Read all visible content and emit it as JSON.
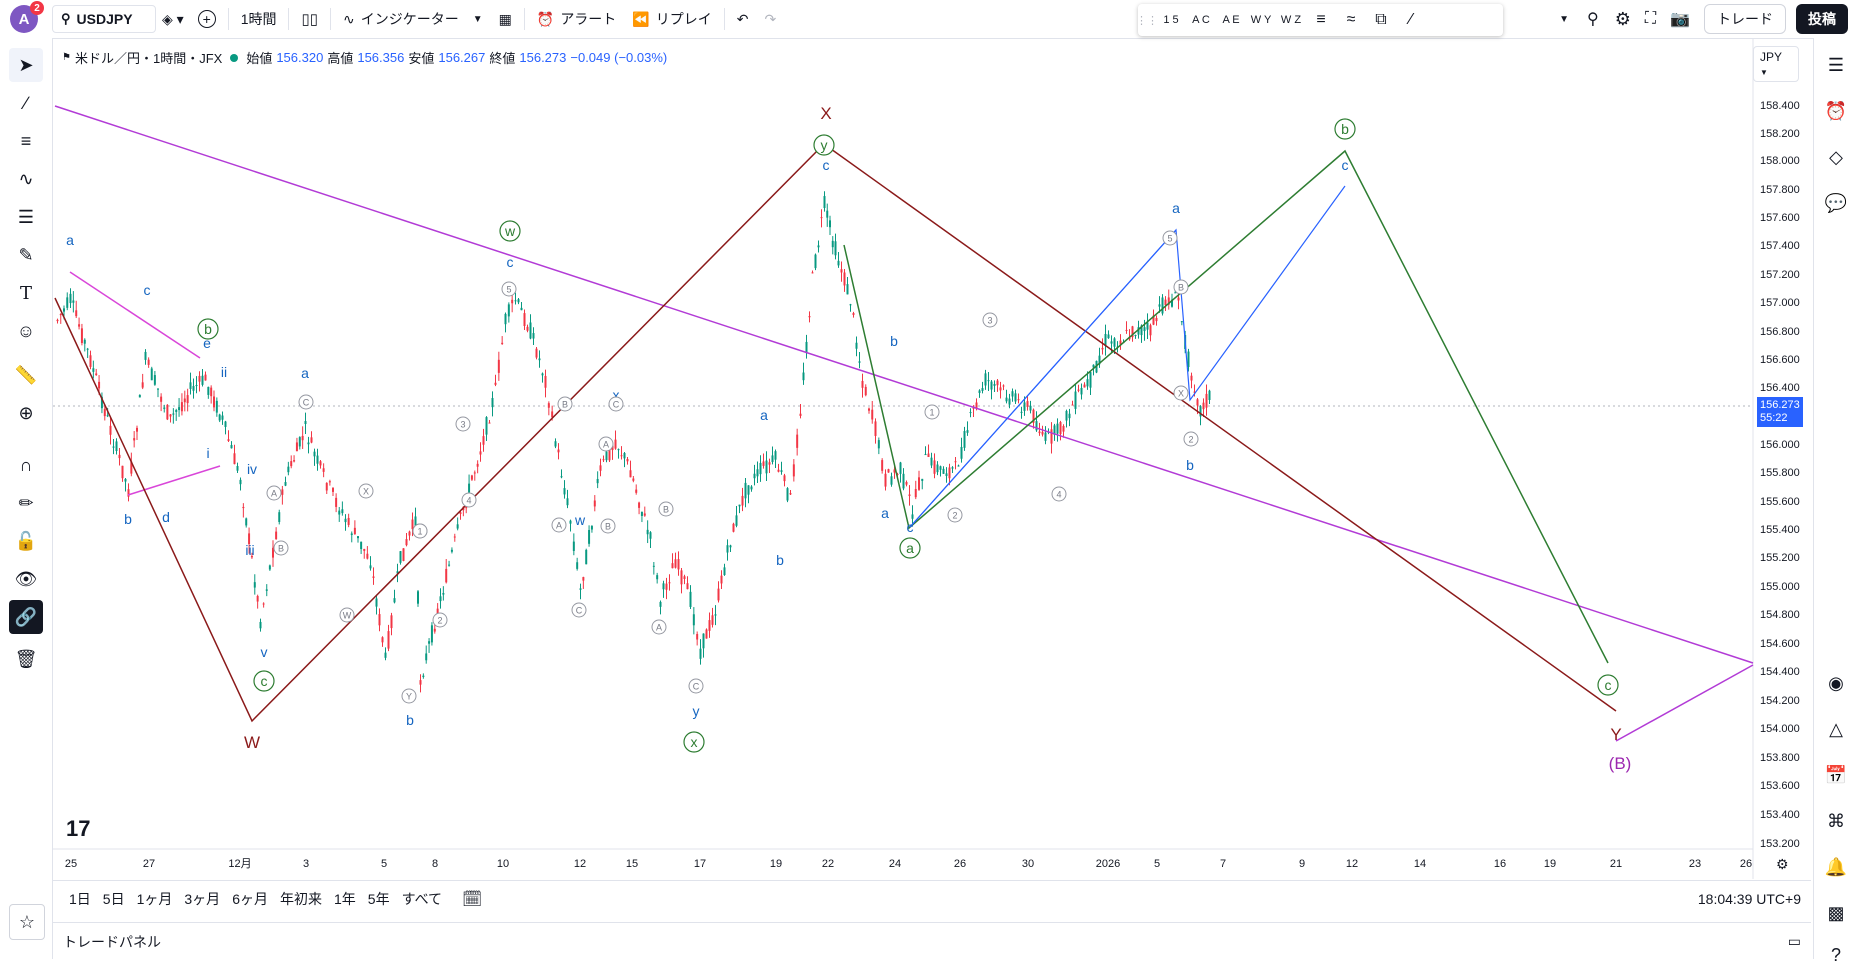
{
  "topbar": {
    "avatar_letter": "A",
    "avatar_badge": "2",
    "symbol": "USDJPY",
    "interval": "1時間",
    "indicators": "インジケーター",
    "alert": "アラート",
    "replay": "リプレイ",
    "trade": "トレード",
    "post": "投稿"
  },
  "floating_toolbar": {
    "tools": [
      "1 5",
      "A C",
      "A E",
      "W Y",
      "W Z"
    ]
  },
  "legend": {
    "title": "米ドル／円・1時間・JFX",
    "open_label": "始値",
    "open": "156.320",
    "high_label": "高値",
    "high": "156.356",
    "low_label": "安値",
    "low": "156.267",
    "close_label": "終値",
    "close": "156.273",
    "change": "−0.049 (−0.03%)"
  },
  "price_axis": {
    "currency": "JPY",
    "ticks": [
      "158.400",
      "158.200",
      "158.000",
      "157.800",
      "157.600",
      "157.400",
      "157.200",
      "157.000",
      "156.800",
      "156.600",
      "156.400",
      "156.000",
      "155.800",
      "155.600",
      "155.400",
      "155.200",
      "155.000",
      "154.800",
      "154.600",
      "154.400",
      "154.200",
      "154.000",
      "153.800",
      "153.600",
      "153.400",
      "153.200"
    ],
    "current_price": "156.273",
    "countdown": "55:22"
  },
  "time_axis": {
    "ticks": [
      "25",
      "27",
      "12月",
      "3",
      "5",
      "8",
      "10",
      "12",
      "15",
      "17",
      "19",
      "22",
      "24",
      "26",
      "30",
      "2026",
      "5",
      "7",
      "9",
      "12",
      "14",
      "16",
      "19",
      "21",
      "23",
      "26"
    ]
  },
  "bottombar": {
    "ranges": [
      "1日",
      "5日",
      "1ヶ月",
      "3ヶ月",
      "6ヶ月",
      "年初来",
      "1年",
      "5年",
      "すべて"
    ],
    "clock": "18:04:39 UTC+9"
  },
  "tradepanel": {
    "label": "トレードパネル"
  },
  "wave_labels": {
    "X": "X",
    "W": "W",
    "Y": "Y",
    "B": "(B)",
    "a": "a",
    "b": "b",
    "c": "c",
    "d": "d",
    "e": "e",
    "i": "i",
    "ii": "ii",
    "iii": "iii",
    "iv": "iv",
    "v": "v",
    "w": "w",
    "x": "x",
    "y": "y",
    "circ_w": "w",
    "circ_x": "x",
    "circ_y": "y",
    "circ_a": "a",
    "circ_b": "b",
    "circ_c": "c",
    "n1": "1",
    "n2": "2",
    "n3": "3",
    "n4": "4",
    "n5": "5",
    "A": "A",
    "Bl": "B",
    "C": "C",
    "Xs": "X",
    "Ys": "Y",
    "Wc": "W"
  },
  "colors": {
    "up": "#089981",
    "down": "#f23645",
    "blue": "#2962ff",
    "wave_blue": "#1565c0",
    "maroon": "#8b1a1a",
    "green": "#2e7d32",
    "purple": "#b23bd6",
    "magenta": "#d946d9"
  }
}
